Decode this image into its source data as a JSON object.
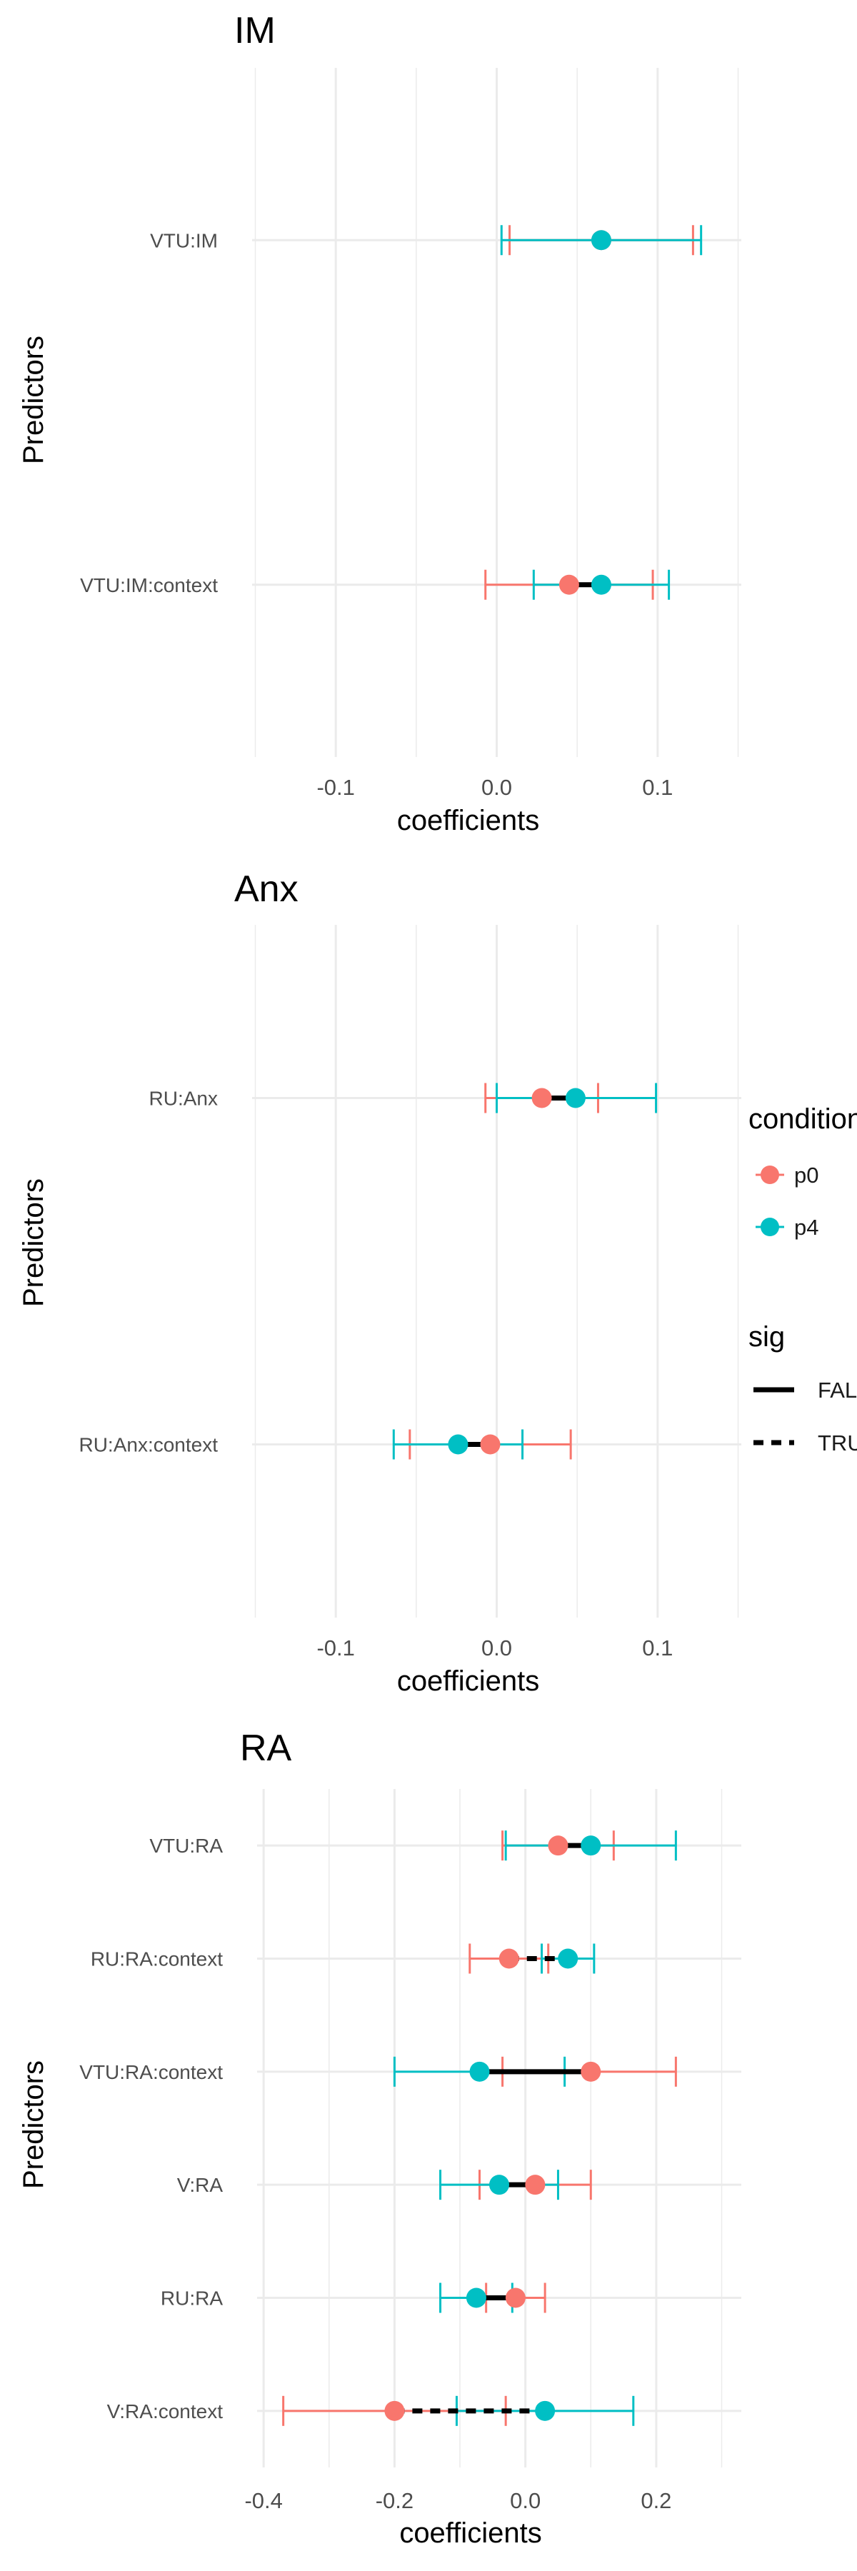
{
  "colors": {
    "p0": "#F8766D",
    "p4": "#00BFC4",
    "grid": "#EBEBEB",
    "segment": "#000000"
  },
  "legend": {
    "condition": {
      "title": "condition",
      "items": [
        "p0",
        "p4"
      ]
    },
    "sig": {
      "title": "sig",
      "items": [
        {
          "label": "FALSE",
          "linetype": "solid"
        },
        {
          "label": "TRUE",
          "linetype": "dashed"
        }
      ]
    }
  },
  "chart_data": [
    {
      "type": "forest",
      "title": "IM",
      "xlabel": "coefficients",
      "ylabel": "Predictors",
      "xlim": [
        -0.152,
        0.152
      ],
      "xticks": [
        {
          "v": -0.1,
          "label": "-0.1"
        },
        {
          "v": 0.0,
          "label": "0.0"
        },
        {
          "v": 0.1,
          "label": "0.1"
        }
      ],
      "predictors": [
        "VTU:IM",
        "VTU:IM:context"
      ],
      "points": [
        {
          "predictor": "VTU:IM",
          "condition": "p0",
          "estimate": 0.065,
          "lower": 0.008,
          "upper": 0.122
        },
        {
          "predictor": "VTU:IM",
          "condition": "p4",
          "estimate": 0.065,
          "lower": 0.003,
          "upper": 0.127
        },
        {
          "predictor": "VTU:IM:context",
          "condition": "p0",
          "estimate": 0.045,
          "lower": -0.007,
          "upper": 0.097
        },
        {
          "predictor": "VTU:IM:context",
          "condition": "p4",
          "estimate": 0.065,
          "lower": 0.023,
          "upper": 0.107
        }
      ],
      "segments": [
        {
          "predictor": "VTU:IM:context",
          "from": 0.045,
          "to": 0.065,
          "sig": "FALSE"
        }
      ]
    },
    {
      "type": "forest",
      "title": "Anx",
      "xlabel": "coefficients",
      "ylabel": "Predictors",
      "xlim": [
        -0.152,
        0.152
      ],
      "xticks": [
        {
          "v": -0.1,
          "label": "-0.1"
        },
        {
          "v": 0.0,
          "label": "0.0"
        },
        {
          "v": 0.1,
          "label": "0.1"
        }
      ],
      "predictors": [
        "RU:Anx",
        "RU:Anx:context"
      ],
      "points": [
        {
          "predictor": "RU:Anx",
          "condition": "p0",
          "estimate": 0.028,
          "lower": -0.007,
          "upper": 0.063
        },
        {
          "predictor": "RU:Anx",
          "condition": "p4",
          "estimate": 0.049,
          "lower": 0.0,
          "upper": 0.099
        },
        {
          "predictor": "RU:Anx:context",
          "condition": "p0",
          "estimate": -0.004,
          "lower": -0.054,
          "upper": 0.046
        },
        {
          "predictor": "RU:Anx:context",
          "condition": "p4",
          "estimate": -0.024,
          "lower": -0.064,
          "upper": 0.016
        }
      ],
      "segments": [
        {
          "predictor": "RU:Anx",
          "from": 0.028,
          "to": 0.049,
          "sig": "FALSE"
        },
        {
          "predictor": "RU:Anx:context",
          "from": -0.024,
          "to": -0.004,
          "sig": "FALSE"
        }
      ]
    },
    {
      "type": "forest",
      "title": "RA",
      "xlabel": "coefficients",
      "ylabel": "Predictors",
      "xlim": [
        -0.41,
        0.33
      ],
      "xticks": [
        {
          "v": -0.4,
          "label": "-0.4"
        },
        {
          "v": -0.2,
          "label": "-0.2"
        },
        {
          "v": 0.0,
          "label": "0.0"
        },
        {
          "v": 0.2,
          "label": "0.2"
        }
      ],
      "predictors": [
        "VTU:RA",
        "RU:RA:context",
        "VTU:RA:context",
        "V:RA",
        "RU:RA",
        "V:RA:context"
      ],
      "points": [
        {
          "predictor": "VTU:RA",
          "condition": "p0",
          "estimate": 0.05,
          "lower": -0.035,
          "upper": 0.135
        },
        {
          "predictor": "VTU:RA",
          "condition": "p4",
          "estimate": 0.1,
          "lower": -0.03,
          "upper": 0.23
        },
        {
          "predictor": "RU:RA:context",
          "condition": "p0",
          "estimate": -0.025,
          "lower": -0.085,
          "upper": 0.035
        },
        {
          "predictor": "RU:RA:context",
          "condition": "p4",
          "estimate": 0.065,
          "lower": 0.025,
          "upper": 0.105
        },
        {
          "predictor": "VTU:RA:context",
          "condition": "p0",
          "estimate": 0.1,
          "lower": -0.035,
          "upper": 0.23
        },
        {
          "predictor": "VTU:RA:context",
          "condition": "p4",
          "estimate": -0.07,
          "lower": -0.2,
          "upper": 0.06
        },
        {
          "predictor": "V:RA",
          "condition": "p0",
          "estimate": 0.015,
          "lower": -0.07,
          "upper": 0.1
        },
        {
          "predictor": "V:RA",
          "condition": "p4",
          "estimate": -0.04,
          "lower": -0.13,
          "upper": 0.05
        },
        {
          "predictor": "RU:RA",
          "condition": "p0",
          "estimate": -0.015,
          "lower": -0.06,
          "upper": 0.03
        },
        {
          "predictor": "RU:RA",
          "condition": "p4",
          "estimate": -0.075,
          "lower": -0.13,
          "upper": -0.02
        },
        {
          "predictor": "V:RA:context",
          "condition": "p0",
          "estimate": -0.2,
          "lower": -0.37,
          "upper": -0.03
        },
        {
          "predictor": "V:RA:context",
          "condition": "p4",
          "estimate": 0.03,
          "lower": -0.105,
          "upper": 0.165
        }
      ],
      "segments": [
        {
          "predictor": "VTU:RA",
          "from": 0.05,
          "to": 0.1,
          "sig": "FALSE"
        },
        {
          "predictor": "RU:RA:context",
          "from": -0.025,
          "to": 0.065,
          "sig": "TRUE"
        },
        {
          "predictor": "VTU:RA:context",
          "from": -0.07,
          "to": 0.1,
          "sig": "FALSE"
        },
        {
          "predictor": "V:RA",
          "from": -0.04,
          "to": 0.015,
          "sig": "FALSE"
        },
        {
          "predictor": "RU:RA",
          "from": -0.075,
          "to": -0.015,
          "sig": "FALSE"
        },
        {
          "predictor": "V:RA:context",
          "from": -0.2,
          "to": 0.03,
          "sig": "TRUE"
        }
      ]
    }
  ]
}
